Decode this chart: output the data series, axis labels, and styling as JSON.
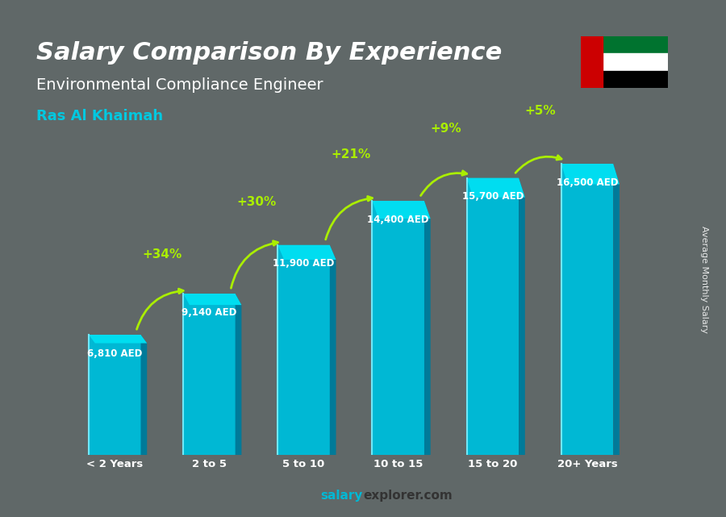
{
  "title": "Salary Comparison By Experience",
  "subtitle": "Environmental Compliance Engineer",
  "location": "Ras Al Khaimah",
  "ylabel": "Average Monthly Salary",
  "xlabel_categories": [
    "< 2 Years",
    "2 to 5",
    "5 to 10",
    "10 to 15",
    "15 to 20",
    "20+ Years"
  ],
  "values": [
    6810,
    9140,
    11900,
    14400,
    15700,
    16500
  ],
  "value_labels": [
    "6,810 AED",
    "9,140 AED",
    "11,900 AED",
    "14,400 AED",
    "15,700 AED",
    "16,500 AED"
  ],
  "pct_labels": [
    "+34%",
    "+30%",
    "+21%",
    "+9%",
    "+5%"
  ],
  "bar_color_top": "#00c8e0",
  "bar_color_bottom": "#0080a0",
  "bar_color_mid": "#00b0d0",
  "background_color": "#7a8a88",
  "title_color": "#ffffff",
  "subtitle_color": "#ffffff",
  "location_color": "#00c8e0",
  "value_label_color": "#ffffff",
  "pct_color": "#aaee00",
  "arrow_color": "#aaee00",
  "footer_color": "#333333",
  "watermark_salary": "salary",
  "watermark_explorer": "explorer.com",
  "figsize": [
    9.0,
    6.41
  ],
  "dpi": 100
}
